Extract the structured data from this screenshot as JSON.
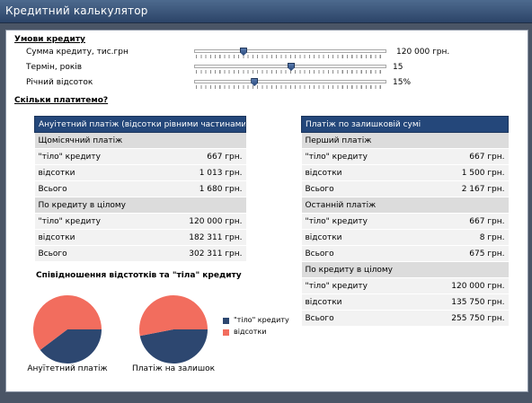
{
  "window": {
    "title": "Кредитний калькулятор"
  },
  "conditions": {
    "heading": "Умови кредиту",
    "params": [
      {
        "label": "Сумма кредиту, тис.грн",
        "value": "120 000 грн.",
        "level": 0.24
      },
      {
        "label": "Термін, років",
        "value": "15",
        "level": 0.5
      },
      {
        "label": "Річний відсоток",
        "value": "15%",
        "level": 0.3
      }
    ]
  },
  "results": {
    "heading": "Скільки платитемо?",
    "annuity": {
      "header": "Ануітетний платіж (відсотки рівними частинами)",
      "rows": [
        {
          "kind": "sub",
          "label": "Щомісячний платіж",
          "value": ""
        },
        {
          "kind": "row",
          "label": "\"тіло\"  кредиту",
          "value": "667 грн."
        },
        {
          "kind": "row",
          "label": "відсотки",
          "value": "1 013 грн."
        },
        {
          "kind": "row",
          "label": "Всього",
          "value": "1 680 грн."
        },
        {
          "kind": "sub",
          "label": "По кредиту в цілому",
          "value": ""
        },
        {
          "kind": "row",
          "label": "\"тіло\" кредиту",
          "value": "120 000 грн."
        },
        {
          "kind": "row",
          "label": "відсотки",
          "value": "182 311 грн."
        },
        {
          "kind": "row",
          "label": "Всього",
          "value": "302 311 грн."
        }
      ]
    },
    "declining": {
      "header": "Платіж по залишковій сумі",
      "rows": [
        {
          "kind": "sub",
          "label": "Перший платіж",
          "value": ""
        },
        {
          "kind": "row",
          "label": "\"тіло\"  кредиту",
          "value": "667 грн."
        },
        {
          "kind": "row",
          "label": "відсотки",
          "value": "1 500 грн."
        },
        {
          "kind": "row",
          "label": "Всього",
          "value": "2 167 грн."
        },
        {
          "kind": "sub",
          "label": "Останній платіж",
          "value": ""
        },
        {
          "kind": "row",
          "label": "\"тіло\"  кредиту",
          "value": "667 грн."
        },
        {
          "kind": "row",
          "label": "відсотки",
          "value": "8 грн."
        },
        {
          "kind": "row",
          "label": "Всього",
          "value": "675 грн."
        },
        {
          "kind": "sub",
          "label": "По кредиту в цілому",
          "value": ""
        },
        {
          "kind": "row",
          "label": "\"тіло\" кредиту",
          "value": "120 000 грн."
        },
        {
          "kind": "row",
          "label": "відсотки",
          "value": "135 750 грн."
        },
        {
          "kind": "row",
          "label": "Всього",
          "value": "255 750 грн."
        }
      ]
    }
  },
  "chart_data": {
    "type": "pie",
    "title": "Співідношення відстотків та \"тіла\" кредиту",
    "legend": [
      {
        "name": "\"тіло\" кредиту",
        "color": "#2d4770"
      },
      {
        "name": "відсотки",
        "color": "#f26d5e"
      }
    ],
    "pies": [
      {
        "label": "Ануїтетний платіж",
        "values": [
          120000,
          182311
        ]
      },
      {
        "label": "Платіж на залишок",
        "values": [
          120000,
          135750
        ]
      }
    ]
  }
}
